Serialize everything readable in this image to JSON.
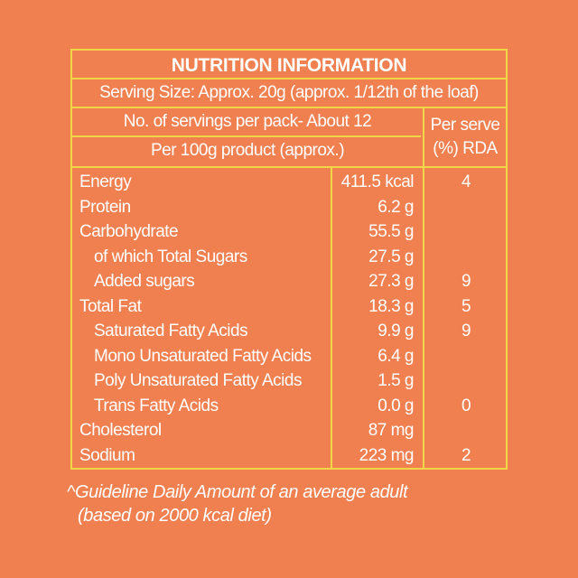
{
  "title": "NUTRITION INFORMATION",
  "serving_size": "Serving Size: Approx. 20g (approx. 1/12th of the loaf)",
  "servings_per_pack": "No. of servings per pack- About 12",
  "per_100g": "Per 100g product (approx.)",
  "rda_header_line1": "Per serve",
  "rda_header_line2": "(%) RDA",
  "rows": [
    {
      "name": "Energy",
      "value": "411.5 kcal",
      "rda": "4",
      "indent": false
    },
    {
      "name": "Protein",
      "value": "6.2 g",
      "rda": "",
      "indent": false
    },
    {
      "name": "Carbohydrate",
      "value": "55.5 g",
      "rda": "",
      "indent": false
    },
    {
      "name": "of which Total Sugars",
      "value": "27.5 g",
      "rda": "",
      "indent": true
    },
    {
      "name": "Added sugars",
      "value": "27.3 g",
      "rda": "9",
      "indent": true
    },
    {
      "name": "Total Fat",
      "value": "18.3 g",
      "rda": "5",
      "indent": false
    },
    {
      "name": "Saturated Fatty Acids",
      "value": "9.9 g",
      "rda": "9",
      "indent": true
    },
    {
      "name": "Mono Unsaturated Fatty Acids",
      "value": "6.4 g",
      "rda": "",
      "indent": true
    },
    {
      "name": "Poly Unsaturated Fatty Acids",
      "value": "1.5 g",
      "rda": "",
      "indent": true
    },
    {
      "name": "Trans Fatty Acids",
      "value": "0.0 g",
      "rda": "0",
      "indent": true
    },
    {
      "name": "Cholesterol",
      "value": "87 mg",
      "rda": "",
      "indent": false
    },
    {
      "name": "Sodium",
      "value": "223 mg",
      "rda": "2",
      "indent": false
    }
  ],
  "footnote_line1": "^Guideline Daily Amount of an average adult",
  "footnote_line2": "(based on 2000 kcal diet)"
}
